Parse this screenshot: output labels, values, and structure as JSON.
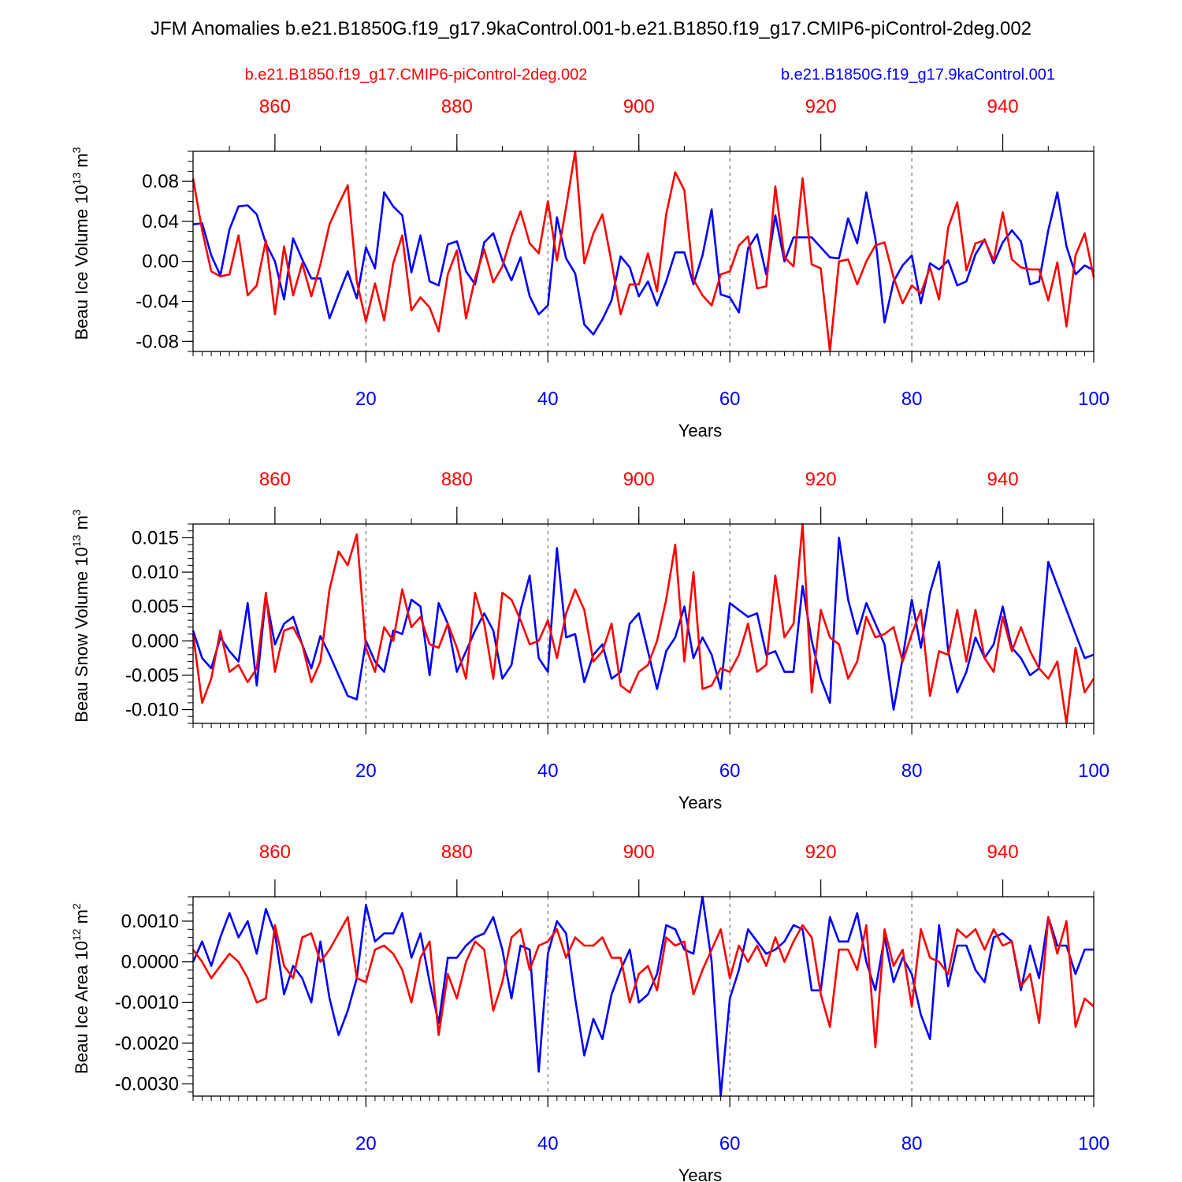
{
  "title": "JFM Anomalies b.e21.B1850G.f19_g17.9kaControl.001-b.e21.B1850.f19_g17.CMIP6-piControl-2deg.002",
  "legend": {
    "red_label": "b.e21.B1850.f19_g17.CMIP6-piControl-2deg.002",
    "blue_label": "b.e21.B1850G.f19_g17.9kaControl.001"
  },
  "colors": {
    "red": "#ff0000",
    "blue": "#0000ff",
    "axis": "#000000",
    "grid": "#555555"
  },
  "chart_data": [
    {
      "type": "line",
      "ylabel": "Beau Ice Volume 10",
      "ylabel_sup": "13",
      "ylabel_unit": "m",
      "ylabel_unit_sup": "3",
      "xlabel": "Years",
      "xlim": [
        1,
        100
      ],
      "top_xlim": [
        851,
        950
      ],
      "ylim": [
        -0.09,
        0.11
      ],
      "yticks": [
        -0.08,
        -0.04,
        0.0,
        0.04,
        0.08
      ],
      "yticklabels": [
        "-0.08",
        "-0.04",
        "0.00",
        "0.04",
        "0.08"
      ],
      "yminor": 0.01,
      "bottom_ticks": [
        20,
        40,
        60,
        80,
        100
      ],
      "bottom_ticklabels": [
        "20",
        "40",
        "60",
        "80",
        "100"
      ],
      "top_ticks": [
        860,
        880,
        900,
        920,
        940
      ],
      "top_ticklabels": [
        "860",
        "880",
        "900",
        "920",
        "940"
      ],
      "series": [
        {
          "name": "b.e21.B1850G.f19_g17.9kaControl.001",
          "color": "blue",
          "values": [
            0.037,
            0.038,
            0.006,
            -0.014,
            0.032,
            0.055,
            0.056,
            0.047,
            0.018,
            0.0,
            -0.038,
            0.023,
            0.002,
            -0.017,
            -0.017,
            -0.057,
            -0.033,
            -0.01,
            -0.037,
            0.014,
            -0.007,
            0.069,
            0.055,
            0.046,
            -0.011,
            0.026,
            -0.02,
            -0.024,
            0.017,
            0.02,
            -0.01,
            -0.023,
            0.019,
            0.028,
            0.001,
            -0.019,
            0.004,
            -0.035,
            -0.053,
            -0.044,
            0.044,
            0.003,
            -0.012,
            -0.063,
            -0.073,
            -0.058,
            -0.039,
            0.005,
            -0.006,
            -0.035,
            -0.02,
            -0.044,
            -0.02,
            0.009,
            0.009,
            -0.023,
            0.006,
            0.052,
            -0.033,
            -0.036,
            -0.051,
            0.013,
            0.027,
            -0.013,
            0.046,
            0.0,
            0.024,
            0.024,
            0.024,
            0.014,
            0.004,
            0.003,
            0.043,
            0.018,
            0.069,
            0.023,
            -0.061,
            -0.02,
            -0.004,
            0.006,
            -0.042,
            -0.002,
            -0.008,
            0.001,
            -0.024,
            -0.02,
            0.007,
            0.022,
            -0.002,
            0.019,
            0.031,
            0.02,
            -0.023,
            -0.02,
            0.031,
            0.069,
            0.015,
            -0.013,
            -0.004,
            -0.009
          ]
        },
        {
          "name": "b.e21.B1850.f19_g17.CMIP6-piControl-2deg.002",
          "color": "red",
          "values": [
            0.083,
            0.031,
            -0.01,
            -0.015,
            -0.013,
            0.026,
            -0.034,
            -0.024,
            0.021,
            -0.053,
            0.015,
            -0.034,
            -0.002,
            -0.035,
            -0.003,
            0.037,
            0.057,
            0.076,
            -0.02,
            -0.06,
            -0.022,
            -0.059,
            -0.002,
            0.026,
            -0.049,
            -0.036,
            -0.046,
            -0.07,
            -0.013,
            0.011,
            -0.057,
            -0.017,
            0.012,
            -0.021,
            -0.005,
            0.026,
            0.05,
            0.018,
            0.008,
            0.06,
            0.001,
            0.054,
            0.11,
            -0.002,
            0.028,
            0.047,
            -0.001,
            -0.053,
            -0.023,
            -0.023,
            0.008,
            -0.03,
            0.047,
            0.089,
            0.071,
            -0.018,
            -0.034,
            -0.044,
            -0.013,
            -0.01,
            0.016,
            0.025,
            -0.027,
            -0.025,
            0.075,
            0.004,
            -0.005,
            0.083,
            -0.003,
            -0.007,
            -0.09,
            0.0,
            0.002,
            -0.023,
            0.0,
            0.016,
            0.019,
            -0.016,
            -0.042,
            -0.024,
            -0.032,
            -0.006,
            -0.038,
            0.034,
            0.059,
            -0.009,
            0.018,
            0.021,
            0.001,
            0.049,
            0.002,
            -0.006,
            -0.008,
            -0.008,
            -0.039,
            -0.001,
            -0.065,
            0.006,
            0.028,
            -0.016
          ]
        }
      ]
    },
    {
      "type": "line",
      "ylabel": "Beau Snow Volume 10",
      "ylabel_sup": "13",
      "ylabel_unit": "m",
      "ylabel_unit_sup": "3",
      "xlabel": "Years",
      "xlim": [
        1,
        100
      ],
      "top_xlim": [
        851,
        950
      ],
      "ylim": [
        -0.012,
        0.017
      ],
      "yticks": [
        -0.01,
        -0.005,
        0.0,
        0.005,
        0.01,
        0.015
      ],
      "yticklabels": [
        "-0.010",
        "-0.005",
        "0.000",
        "0.005",
        "0.010",
        "0.015"
      ],
      "yminor": 0.001,
      "bottom_ticks": [
        20,
        40,
        60,
        80,
        100
      ],
      "bottom_ticklabels": [
        "20",
        "40",
        "60",
        "80",
        "100"
      ],
      "top_ticks": [
        860,
        880,
        900,
        920,
        940
      ],
      "top_ticklabels": [
        "860",
        "880",
        "900",
        "920",
        "940"
      ],
      "series": [
        {
          "name": "b.e21.B1850G.f19_g17.9kaControl.001",
          "color": "blue",
          "values": [
            0.0015,
            -0.0025,
            -0.004,
            0.0005,
            -0.0015,
            -0.003,
            0.0055,
            -0.0065,
            0.0065,
            -0.0005,
            0.0025,
            0.0035,
            -0.0005,
            -0.004,
            0.0007,
            -0.002,
            -0.005,
            -0.008,
            -0.0085,
            0.0,
            -0.003,
            -0.0045,
            0.0015,
            0.001,
            0.006,
            0.005,
            -0.005,
            0.0055,
            0.0025,
            -0.0045,
            -0.0015,
            0.0015,
            0.004,
            0.0015,
            -0.0055,
            -0.0035,
            0.0045,
            0.0095,
            -0.0025,
            -0.0045,
            0.0135,
            0.0005,
            0.001,
            -0.006,
            -0.002,
            -0.0005,
            -0.0055,
            -0.0045,
            0.0025,
            0.004,
            -0.0015,
            -0.007,
            -0.0015,
            0.0005,
            0.005,
            -0.0025,
            0.0005,
            -0.002,
            -0.007,
            0.0055,
            0.0045,
            0.0035,
            0.004,
            -0.002,
            -0.0015,
            -0.0045,
            -0.0045,
            0.008,
            0.0,
            -0.0055,
            -0.009,
            0.015,
            0.006,
            0.001,
            0.0055,
            0.0025,
            -0.0005,
            -0.01,
            -0.0025,
            0.006,
            -0.001,
            0.007,
            0.0115,
            -0.0015,
            -0.0075,
            -0.0045,
            0.0005,
            -0.0025,
            -0.0005,
            0.005,
            -0.001,
            -0.0025,
            -0.005,
            -0.004,
            0.0115,
            0.008,
            0.0045,
            0.001,
            -0.0025,
            -0.002
          ]
        },
        {
          "name": "b.e21.B1850.f19_g17.CMIP6-piControl-2deg.002",
          "color": "red",
          "values": [
            0.001,
            -0.009,
            -0.0055,
            0.0015,
            -0.0045,
            -0.0035,
            -0.006,
            -0.004,
            0.007,
            -0.0045,
            0.0015,
            0.002,
            -0.0005,
            -0.006,
            -0.003,
            0.0075,
            0.013,
            0.011,
            0.0155,
            -0.001,
            -0.0045,
            0.002,
            0.0,
            0.0075,
            0.002,
            0.0035,
            -0.0005,
            -0.001,
            0.0025,
            -0.001,
            -0.0055,
            0.007,
            0.0025,
            -0.0055,
            0.007,
            0.006,
            0.003,
            -0.0005,
            0.0,
            0.003,
            -0.0025,
            0.004,
            0.0075,
            0.0045,
            -0.003,
            -0.0015,
            0.0025,
            -0.0065,
            -0.0075,
            -0.0045,
            -0.0035,
            0.0,
            0.006,
            0.014,
            -0.003,
            0.01,
            -0.007,
            -0.0065,
            -0.004,
            -0.0045,
            -0.002,
            0.0025,
            -0.0045,
            -0.0035,
            0.0095,
            0.0005,
            0.0025,
            0.017,
            -0.0075,
            0.0045,
            0.0005,
            -0.0005,
            -0.0055,
            -0.003,
            0.0035,
            0.0005,
            0.001,
            0.002,
            -0.003,
            0.001,
            0.0045,
            -0.008,
            -0.0015,
            -0.002,
            0.0045,
            -0.003,
            0.0045,
            -0.0025,
            -0.0045,
            0.0035,
            -0.0015,
            0.002,
            -0.0015,
            -0.004,
            -0.0055,
            -0.003,
            -0.012,
            -0.001,
            -0.0075,
            -0.0055
          ]
        }
      ]
    },
    {
      "type": "line",
      "ylabel": "Beau Ice Area 10",
      "ylabel_sup": "12",
      "ylabel_unit": "m",
      "ylabel_unit_sup": "2",
      "xlabel": "Years",
      "xlim": [
        1,
        100
      ],
      "top_xlim": [
        851,
        950
      ],
      "ylim": [
        -0.0033,
        0.0016
      ],
      "yticks": [
        -0.003,
        -0.002,
        -0.001,
        0.0,
        0.001
      ],
      "yticklabels": [
        "-0.0030",
        "-0.0020",
        "-0.0010",
        "0.0000",
        "0.0010"
      ],
      "yminor": 0.0002,
      "bottom_ticks": [
        20,
        40,
        60,
        80,
        100
      ],
      "bottom_ticklabels": [
        "20",
        "40",
        "60",
        "80",
        "100"
      ],
      "top_ticks": [
        860,
        880,
        900,
        920,
        940
      ],
      "top_ticklabels": [
        "860",
        "880",
        "900",
        "920",
        "940"
      ],
      "series": [
        {
          "name": "b.e21.B1850G.f19_g17.9kaControl.001",
          "color": "blue",
          "values": [
            0.0,
            0.0005,
            -0.0001,
            0.0006,
            0.0012,
            0.0006,
            0.001,
            0.0002,
            0.0013,
            0.0007,
            -0.0008,
            -0.0001,
            -0.0004,
            -0.001,
            0.0005,
            -0.0009,
            -0.0018,
            -0.0012,
            -0.0004,
            0.0014,
            0.0005,
            0.0007,
            0.0007,
            0.0012,
            0.0001,
            0.0007,
            -0.0005,
            -0.0015,
            0.0001,
            0.0001,
            0.0004,
            0.0006,
            0.0007,
            0.0011,
            0.0003,
            -0.0009,
            0.0004,
            0.0003,
            -0.0027,
            0.0002,
            0.001,
            0.0007,
            -0.0009,
            -0.0023,
            -0.0014,
            -0.0019,
            -0.0008,
            -0.0002,
            0.0003,
            -0.001,
            -0.0008,
            -0.0003,
            0.0009,
            0.0008,
            0.0003,
            0.0002,
            0.0016,
            0.0,
            -0.0033,
            -0.0009,
            -0.0002,
            0.0008,
            0.0005,
            0.0002,
            0.0003,
            0.0005,
            0.0009,
            0.0008,
            -0.0007,
            -0.0007,
            0.0011,
            0.0005,
            0.0005,
            0.0012,
            0.0,
            -0.0007,
            0.0006,
            -0.0005,
            0.0001,
            -0.0003,
            -0.0013,
            -0.0019,
            0.0009,
            -0.0006,
            0.0004,
            0.0004,
            -0.0002,
            -0.0005,
            0.0006,
            0.0007,
            0.0005,
            -0.0007,
            0.0004,
            -0.0004,
            0.0011,
            0.0004,
            0.0004,
            -0.0003,
            0.0003,
            0.0003
          ]
        },
        {
          "name": "b.e21.B1850.f19_g17.CMIP6-piControl-2deg.002",
          "color": "red",
          "values": [
            0.0003,
            0.0,
            -0.0004,
            -0.0001,
            0.0002,
            0.0,
            -0.0004,
            -0.001,
            -0.0009,
            0.0009,
            -0.0001,
            -0.0004,
            0.0006,
            0.0007,
            -0.0,
            0.0003,
            0.0007,
            0.0011,
            -0.0004,
            -0.0005,
            0.0003,
            0.0004,
            0.0002,
            -0.0002,
            -0.001,
            0.0001,
            0.0005,
            -0.0018,
            -0.0003,
            -0.0009,
            0.0,
            0.0005,
            0.0003,
            -0.0012,
            -0.0005,
            0.0006,
            0.0008,
            -0.0002,
            0.0004,
            0.0005,
            0.0008,
            0.0001,
            0.0006,
            0.0004,
            0.0004,
            0.0006,
            0.0001,
            0.0001,
            -0.001,
            -0.0003,
            -0.0001,
            -0.0007,
            0.0006,
            0.0004,
            0.0005,
            -0.0008,
            -0.0002,
            0.0003,
            0.0008,
            -0.0004,
            0.0004,
            0.0,
            0.0004,
            -0.0001,
            0.0006,
            0.0,
            0.0005,
            0.0009,
            0.0006,
            -0.0008,
            -0.0016,
            0.0003,
            0.0003,
            -0.0002,
            0.0009,
            -0.0021,
            0.0008,
            -0.0001,
            0.0003,
            -0.0011,
            0.0008,
            0.0001,
            0.0,
            -0.0003,
            0.0008,
            0.0006,
            0.0008,
            0.0003,
            0.0008,
            0.0004,
            0.0005,
            -0.0006,
            -0.0003,
            -0.0015,
            0.0011,
            0.0002,
            0.001,
            -0.0016,
            -0.0009,
            -0.0011
          ]
        }
      ]
    }
  ]
}
